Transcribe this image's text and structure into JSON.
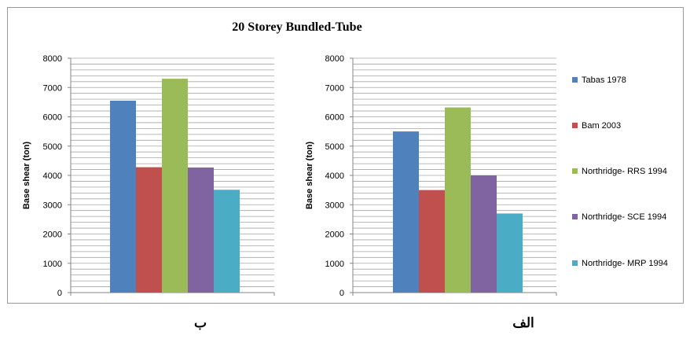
{
  "title": "20 Storey Bundled-Tube",
  "legend": [
    {
      "label": "Tabas 1978",
      "color": "#4f81bd"
    },
    {
      "label": "Bam 2003",
      "color": "#c0504d"
    },
    {
      "label": "Northridge- RRS 1994",
      "color": "#9bbb59"
    },
    {
      "label": "Northridge- SCE 1994",
      "color": "#8064a2"
    },
    {
      "label": "Northridge- MRP 1994",
      "color": "#4bacc6"
    }
  ],
  "captions": {
    "left": "ب",
    "right": "الف"
  },
  "chart_data": [
    {
      "type": "bar",
      "title": "20 Storey Bundled-Tube",
      "ylabel": "Base shear  (ton)",
      "ylim": [
        0,
        8000
      ],
      "yticks": [
        0,
        1000,
        2000,
        3000,
        4000,
        5000,
        6000,
        7000,
        8000
      ],
      "grid": true,
      "caption": "ب",
      "series": [
        {
          "name": "Tabas 1978",
          "values": [
            6550
          ]
        },
        {
          "name": "Bam 2003",
          "values": [
            4280
          ]
        },
        {
          "name": "Northridge- RRS 1994",
          "values": [
            7300
          ]
        },
        {
          "name": "Northridge- SCE 1994",
          "values": [
            4270
          ]
        },
        {
          "name": "Northridge- MRP 1994",
          "values": [
            3510
          ]
        }
      ]
    },
    {
      "type": "bar",
      "ylabel": "Base shear  (ton)",
      "ylim": [
        0,
        8000
      ],
      "yticks": [
        0,
        1000,
        2000,
        3000,
        4000,
        5000,
        6000,
        7000,
        8000
      ],
      "grid": true,
      "legend_position": "right",
      "caption": "الف",
      "series": [
        {
          "name": "Tabas 1978",
          "values": [
            5500
          ]
        },
        {
          "name": "Bam 2003",
          "values": [
            3500
          ]
        },
        {
          "name": "Northridge- RRS 1994",
          "values": [
            6320
          ]
        },
        {
          "name": "Northridge- SCE 1994",
          "values": [
            4000
          ]
        },
        {
          "name": "Northridge- MRP 1994",
          "values": [
            2700
          ]
        }
      ]
    }
  ]
}
